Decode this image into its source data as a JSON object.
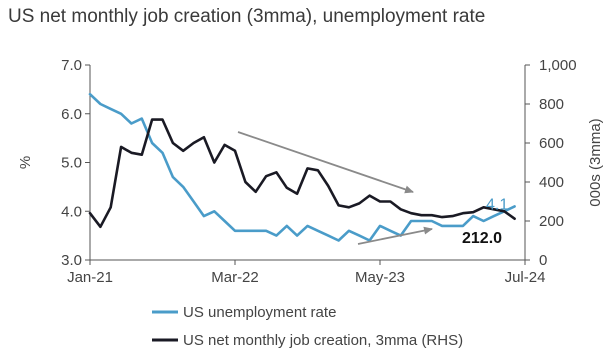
{
  "chart_data": {
    "type": "line",
    "title": "US net monthly job creation (3mma), unemployment rate",
    "ylabel_left": "%",
    "ylabel_right": "000s (3mma)",
    "ylim_left": [
      3.0,
      7.0
    ],
    "ylim_right": [
      0,
      1000
    ],
    "left_ticks": [
      "3.0",
      "4.0",
      "5.0",
      "6.0",
      "7.0"
    ],
    "right_ticks": [
      "0",
      "200",
      "400",
      "600",
      "800",
      "1,000"
    ],
    "x_ticks": [
      "Jan-21",
      "Mar-22",
      "May-23",
      "Jul-24"
    ],
    "x_range": [
      "2021-01",
      "2024-07"
    ],
    "grid": false,
    "legend_position": "bottom",
    "colors": {
      "unemployment": "#4a9cc9",
      "jobs": "#1a1a24",
      "arrow": "#8a8a8a"
    },
    "series": [
      {
        "name": "US unemployment rate",
        "axis": "left",
        "x": [
          "2021-01",
          "2021-02",
          "2021-03",
          "2021-04",
          "2021-05",
          "2021-06",
          "2021-07",
          "2021-08",
          "2021-09",
          "2021-10",
          "2021-11",
          "2021-12",
          "2022-01",
          "2022-02",
          "2022-03",
          "2022-04",
          "2022-05",
          "2022-06",
          "2022-07",
          "2022-08",
          "2022-09",
          "2022-10",
          "2022-11",
          "2022-12",
          "2023-01",
          "2023-02",
          "2023-03",
          "2023-04",
          "2023-05",
          "2023-06",
          "2023-07",
          "2023-08",
          "2023-09",
          "2023-10",
          "2023-11",
          "2023-12",
          "2024-01",
          "2024-02",
          "2024-03",
          "2024-04",
          "2024-05",
          "2024-06"
        ],
        "values": [
          6.4,
          6.2,
          6.1,
          6.0,
          5.8,
          5.9,
          5.4,
          5.2,
          4.7,
          4.5,
          4.2,
          3.9,
          4.0,
          3.8,
          3.6,
          3.6,
          3.6,
          3.6,
          3.5,
          3.7,
          3.5,
          3.7,
          3.6,
          3.5,
          3.4,
          3.6,
          3.5,
          3.4,
          3.7,
          3.6,
          3.5,
          3.8,
          3.8,
          3.8,
          3.7,
          3.7,
          3.7,
          3.9,
          3.8,
          3.9,
          4.0,
          4.1
        ]
      },
      {
        "name": "US net monthly job creation, 3mma (RHS)",
        "axis": "right",
        "x": [
          "2021-01",
          "2021-02",
          "2021-03",
          "2021-04",
          "2021-05",
          "2021-06",
          "2021-07",
          "2021-08",
          "2021-09",
          "2021-10",
          "2021-11",
          "2021-12",
          "2022-01",
          "2022-02",
          "2022-03",
          "2022-04",
          "2022-05",
          "2022-06",
          "2022-07",
          "2022-08",
          "2022-09",
          "2022-10",
          "2022-11",
          "2022-12",
          "2023-01",
          "2023-02",
          "2023-03",
          "2023-04",
          "2023-05",
          "2023-06",
          "2023-07",
          "2023-08",
          "2023-09",
          "2023-10",
          "2023-11",
          "2023-12",
          "2024-01",
          "2024-02",
          "2024-03",
          "2024-04",
          "2024-05",
          "2024-06"
        ],
        "values": [
          240,
          170,
          270,
          580,
          550,
          540,
          720,
          720,
          600,
          560,
          600,
          630,
          500,
          590,
          560,
          400,
          350,
          430,
          450,
          370,
          340,
          470,
          460,
          380,
          280,
          270,
          290,
          330,
          300,
          300,
          260,
          240,
          230,
          230,
          220,
          225,
          240,
          245,
          270,
          260,
          250,
          212
        ]
      }
    ],
    "end_labels": {
      "unemployment": "4.1",
      "jobs": "212.0"
    }
  }
}
